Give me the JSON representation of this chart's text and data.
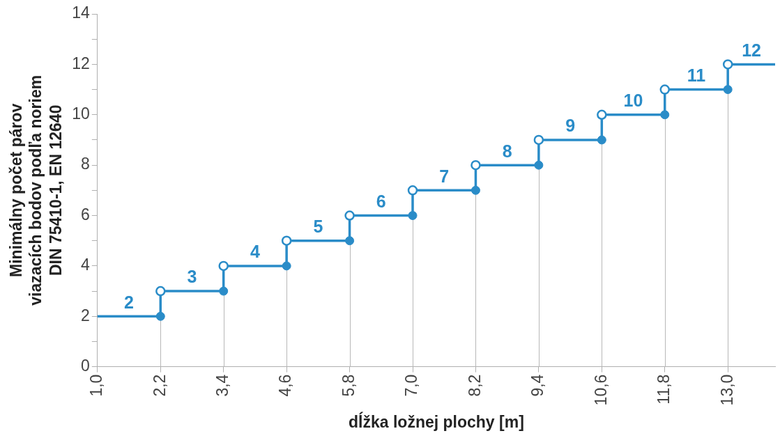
{
  "chart_data": {
    "type": "step",
    "xlabel": "dĺžka ložnej plochy [m]",
    "ylabel": "Minimálny počet párov\nviazacích bodov podľa noriem\nDIN 75410-1, EN 12640",
    "x": [
      1.0,
      2.2,
      3.4,
      4.6,
      5.8,
      7.0,
      8.2,
      9.4,
      10.6,
      11.8,
      13.0,
      13.9
    ],
    "series": [
      {
        "color": "#2a8cc8",
        "values": [
          2,
          3,
          4,
          5,
          6,
          7,
          8,
          9,
          10,
          11,
          12,
          12
        ],
        "value_labels": [
          "2",
          "3",
          "4",
          "5",
          "6",
          "7",
          "8",
          "9",
          "10",
          "11",
          "12",
          null
        ]
      },
      {
        "type": "lollipop",
        "color": "#2a8cc8",
        "x": [
          2.2,
          3.4,
          4.6,
          5.8,
          7.0,
          8.2,
          9.4,
          10.6,
          11.8,
          13.0
        ],
        "values": [
          2,
          3,
          4,
          5,
          6,
          7,
          8,
          9,
          10,
          11
        ]
      }
    ],
    "xlim": [
      1.0,
      13.9
    ],
    "xticks": [
      {
        "value": 1.0,
        "label": "1,0"
      },
      {
        "value": 2.2,
        "label": "2,2"
      },
      {
        "value": 3.4,
        "label": "3,4"
      },
      {
        "value": 4.6,
        "label": "4,6"
      },
      {
        "value": 5.8,
        "label": "5,8"
      },
      {
        "value": 7.0,
        "label": "7,0"
      },
      {
        "value": 8.2,
        "label": "8,2"
      },
      {
        "value": 9.4,
        "label": "9,4"
      },
      {
        "value": 10.6,
        "label": "10,6"
      },
      {
        "value": 11.8,
        "label": "11,8"
      },
      {
        "value": 13.0,
        "label": "13,0"
      }
    ],
    "ylim": [
      0,
      14
    ],
    "yticks": [
      0,
      {
        "value": 1,
        "label": null
      },
      2,
      {
        "value": 3,
        "label": null
      },
      4,
      {
        "value": 5,
        "label": null
      },
      6,
      {
        "value": 7,
        "label": null
      },
      8,
      {
        "value": 9,
        "label": null
      },
      10,
      {
        "value": 11,
        "label": null
      },
      12,
      {
        "value": 13,
        "label": null
      },
      14
    ],
    "marker": "circle",
    "legend": false
  }
}
